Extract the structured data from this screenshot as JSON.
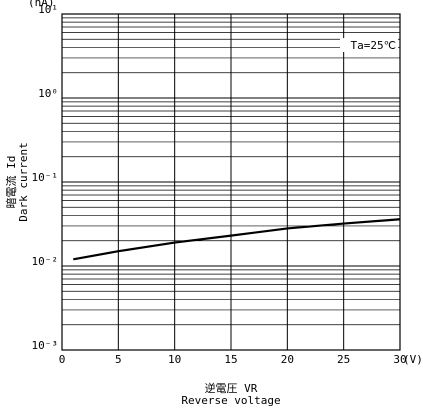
{
  "chart_data": {
    "type": "line",
    "y_unit": "(nA)",
    "x_unit": "(V)",
    "y_label": "暗電流  Id",
    "y_label_en": "Dark current",
    "x_label": "逆電圧  VR",
    "x_label_en": "Reverse voltage",
    "annotation": "Ta=25℃",
    "x": [
      1,
      5,
      10,
      15,
      20,
      25,
      30
    ],
    "series": [
      {
        "color": "#000000",
        "values": [
          0.012,
          0.015,
          0.019,
          0.023,
          0.028,
          0.032,
          0.036
        ]
      }
    ],
    "xlim": [
      0,
      30
    ],
    "xticks": [
      0,
      5,
      10,
      15,
      20,
      25,
      30
    ],
    "ylim": [
      0.001,
      10
    ],
    "log_y": true,
    "yticks": [
      {
        "value": 10,
        "label": "10¹"
      },
      {
        "value": 1,
        "label": "10⁰"
      },
      {
        "value": 0.1,
        "label": "10⁻¹"
      },
      {
        "value": 0.01,
        "label": "10⁻²"
      },
      {
        "value": 0.001,
        "label": "10⁻³"
      }
    ],
    "grid": true,
    "minor_grid": true
  }
}
